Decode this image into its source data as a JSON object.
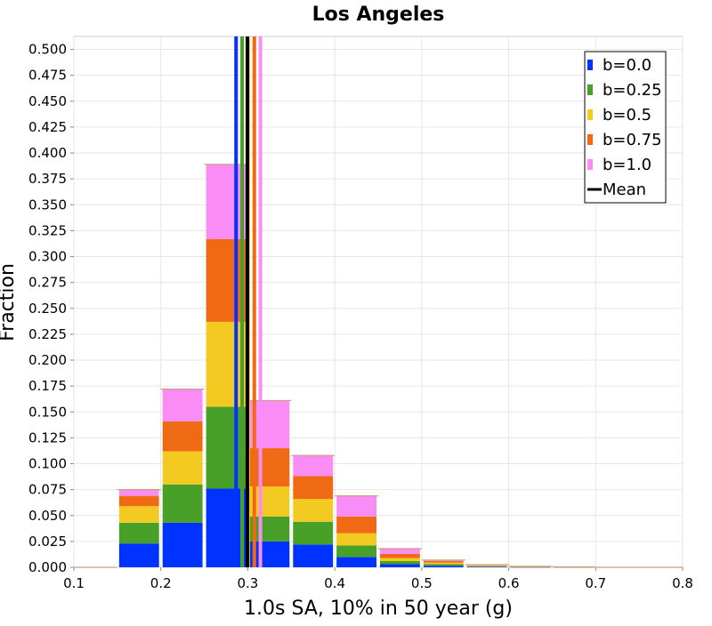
{
  "chart_data": {
    "type": "bar",
    "stacked": true,
    "title": "Los Angeles",
    "xlabel": "1.0s SA, 10% in 50 year (g)",
    "ylabel": "Fraction",
    "xlim": [
      0.1,
      0.8
    ],
    "ylim": [
      0,
      0.5125
    ],
    "xticks": [
      "0.1",
      "0.2",
      "0.3",
      "0.4",
      "0.5",
      "0.6",
      "0.7",
      "0.8"
    ],
    "yticks": [
      "0.000",
      "0.025",
      "0.050",
      "0.075",
      "0.100",
      "0.125",
      "0.150",
      "0.175",
      "0.200",
      "0.225",
      "0.250",
      "0.275",
      "0.300",
      "0.325",
      "0.350",
      "0.375",
      "0.400",
      "0.425",
      "0.450",
      "0.475",
      "0.500"
    ],
    "grid": true,
    "legend_position": "top-right",
    "bin_width": 0.05,
    "x": [
      0.125,
      0.175,
      0.225,
      0.275,
      0.325,
      0.375,
      0.425,
      0.475,
      0.525,
      0.575,
      0.625,
      0.675,
      0.725,
      0.775
    ],
    "series": [
      {
        "name": "b=0.0",
        "color": "#0033ff",
        "values": [
          0.0,
          0.023,
          0.043,
          0.076,
          0.025,
          0.022,
          0.01,
          0.003,
          0.0015,
          0.0005,
          0.0002,
          0.0001,
          0.0,
          0.0
        ]
      },
      {
        "name": "b=0.25",
        "color": "#48a028",
        "values": [
          0.0,
          0.02,
          0.037,
          0.079,
          0.024,
          0.022,
          0.011,
          0.003,
          0.0015,
          0.0005,
          0.0002,
          0.0001,
          0.0,
          0.0
        ]
      },
      {
        "name": "b=0.5",
        "color": "#f2ca22",
        "values": [
          0.0,
          0.016,
          0.032,
          0.082,
          0.029,
          0.022,
          0.012,
          0.003,
          0.0015,
          0.0005,
          0.0002,
          0.0001,
          0.0,
          0.0
        ]
      },
      {
        "name": "b=0.75",
        "color": "#f06a16",
        "values": [
          0.0,
          0.01,
          0.029,
          0.08,
          0.037,
          0.022,
          0.016,
          0.004,
          0.0015,
          0.0005,
          0.0002,
          0.0001,
          0.0,
          0.0
        ]
      },
      {
        "name": "b=1.0",
        "color": "#fa8cf5",
        "values": [
          0.0,
          0.006,
          0.031,
          0.072,
          0.046,
          0.02,
          0.02,
          0.005,
          0.001,
          0.0005,
          0.0002,
          0.0001,
          0.0,
          0.0
        ]
      }
    ],
    "mean_lines": [
      {
        "series": "b=0.0",
        "x": 0.2865,
        "color": "#0033ff"
      },
      {
        "series": "b=0.25",
        "x": 0.2935,
        "color": "#48a028"
      },
      {
        "series": "b=0.5",
        "x": 0.3005,
        "color": "#f2ca22"
      },
      {
        "series": "b=0.75",
        "x": 0.3075,
        "color": "#f06a16"
      },
      {
        "series": "b=1.0",
        "x": 0.3145,
        "color": "#fa8cf5"
      },
      {
        "series": "Mean",
        "x": 0.2995,
        "color": "#000000"
      }
    ],
    "legend": [
      {
        "label": "b=0.0",
        "color": "#0033ff",
        "kind": "box"
      },
      {
        "label": "b=0.25",
        "color": "#48a028",
        "kind": "box"
      },
      {
        "label": "b=0.5",
        "color": "#f2ca22",
        "kind": "box"
      },
      {
        "label": "b=0.75",
        "color": "#f06a16",
        "kind": "box"
      },
      {
        "label": "b=1.0",
        "color": "#fa8cf5",
        "kind": "box"
      },
      {
        "label": "Mean",
        "color": "#000000",
        "kind": "line"
      }
    ]
  }
}
